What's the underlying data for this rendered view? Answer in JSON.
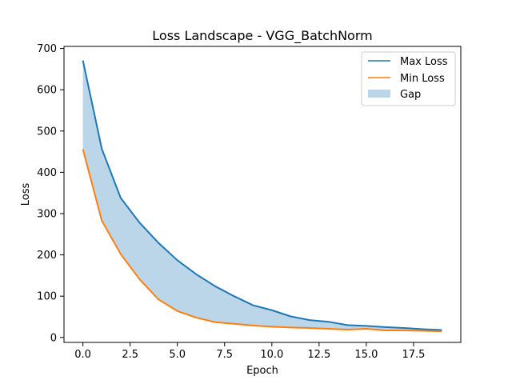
{
  "chart_data": {
    "type": "line",
    "title": "Loss Landscape - VGG_BatchNorm",
    "xlabel": "Epoch",
    "ylabel": "Loss",
    "xlim": [
      -1,
      20
    ],
    "ylim": [
      -12,
      705
    ],
    "xticks": [
      0.0,
      2.5,
      5.0,
      7.5,
      10.0,
      12.5,
      15.0,
      17.5
    ],
    "xtick_labels": [
      "0.0",
      "2.5",
      "5.0",
      "7.5",
      "10.0",
      "12.5",
      "15.0",
      "17.5"
    ],
    "yticks": [
      0,
      100,
      200,
      300,
      400,
      500,
      600,
      700
    ],
    "ytick_labels": [
      "0",
      "100",
      "200",
      "300",
      "400",
      "500",
      "600",
      "700"
    ],
    "grid": false,
    "legend_position": "top-right",
    "x": [
      0,
      1,
      2,
      3,
      4,
      5,
      6,
      7,
      8,
      9,
      10,
      11,
      12,
      13,
      14,
      15,
      16,
      17,
      18,
      19
    ],
    "series": [
      {
        "name": "Max Loss",
        "color": "#1f77b4",
        "values": [
          671,
          457,
          338,
          278,
          229,
          187,
          153,
          124,
          100,
          78,
          66,
          51,
          42,
          38,
          30,
          28,
          25,
          23,
          20,
          18
        ]
      },
      {
        "name": "Min Loss",
        "color": "#ff7f0e",
        "values": [
          456,
          283,
          202,
          141,
          92,
          64,
          48,
          37,
          33,
          29,
          26,
          24,
          23,
          21,
          19,
          21,
          17,
          17,
          16,
          15
        ]
      }
    ],
    "fill": {
      "name": "Gap",
      "color": "#1f77b4",
      "opacity": 0.3,
      "between": [
        "Max Loss",
        "Min Loss"
      ]
    }
  }
}
